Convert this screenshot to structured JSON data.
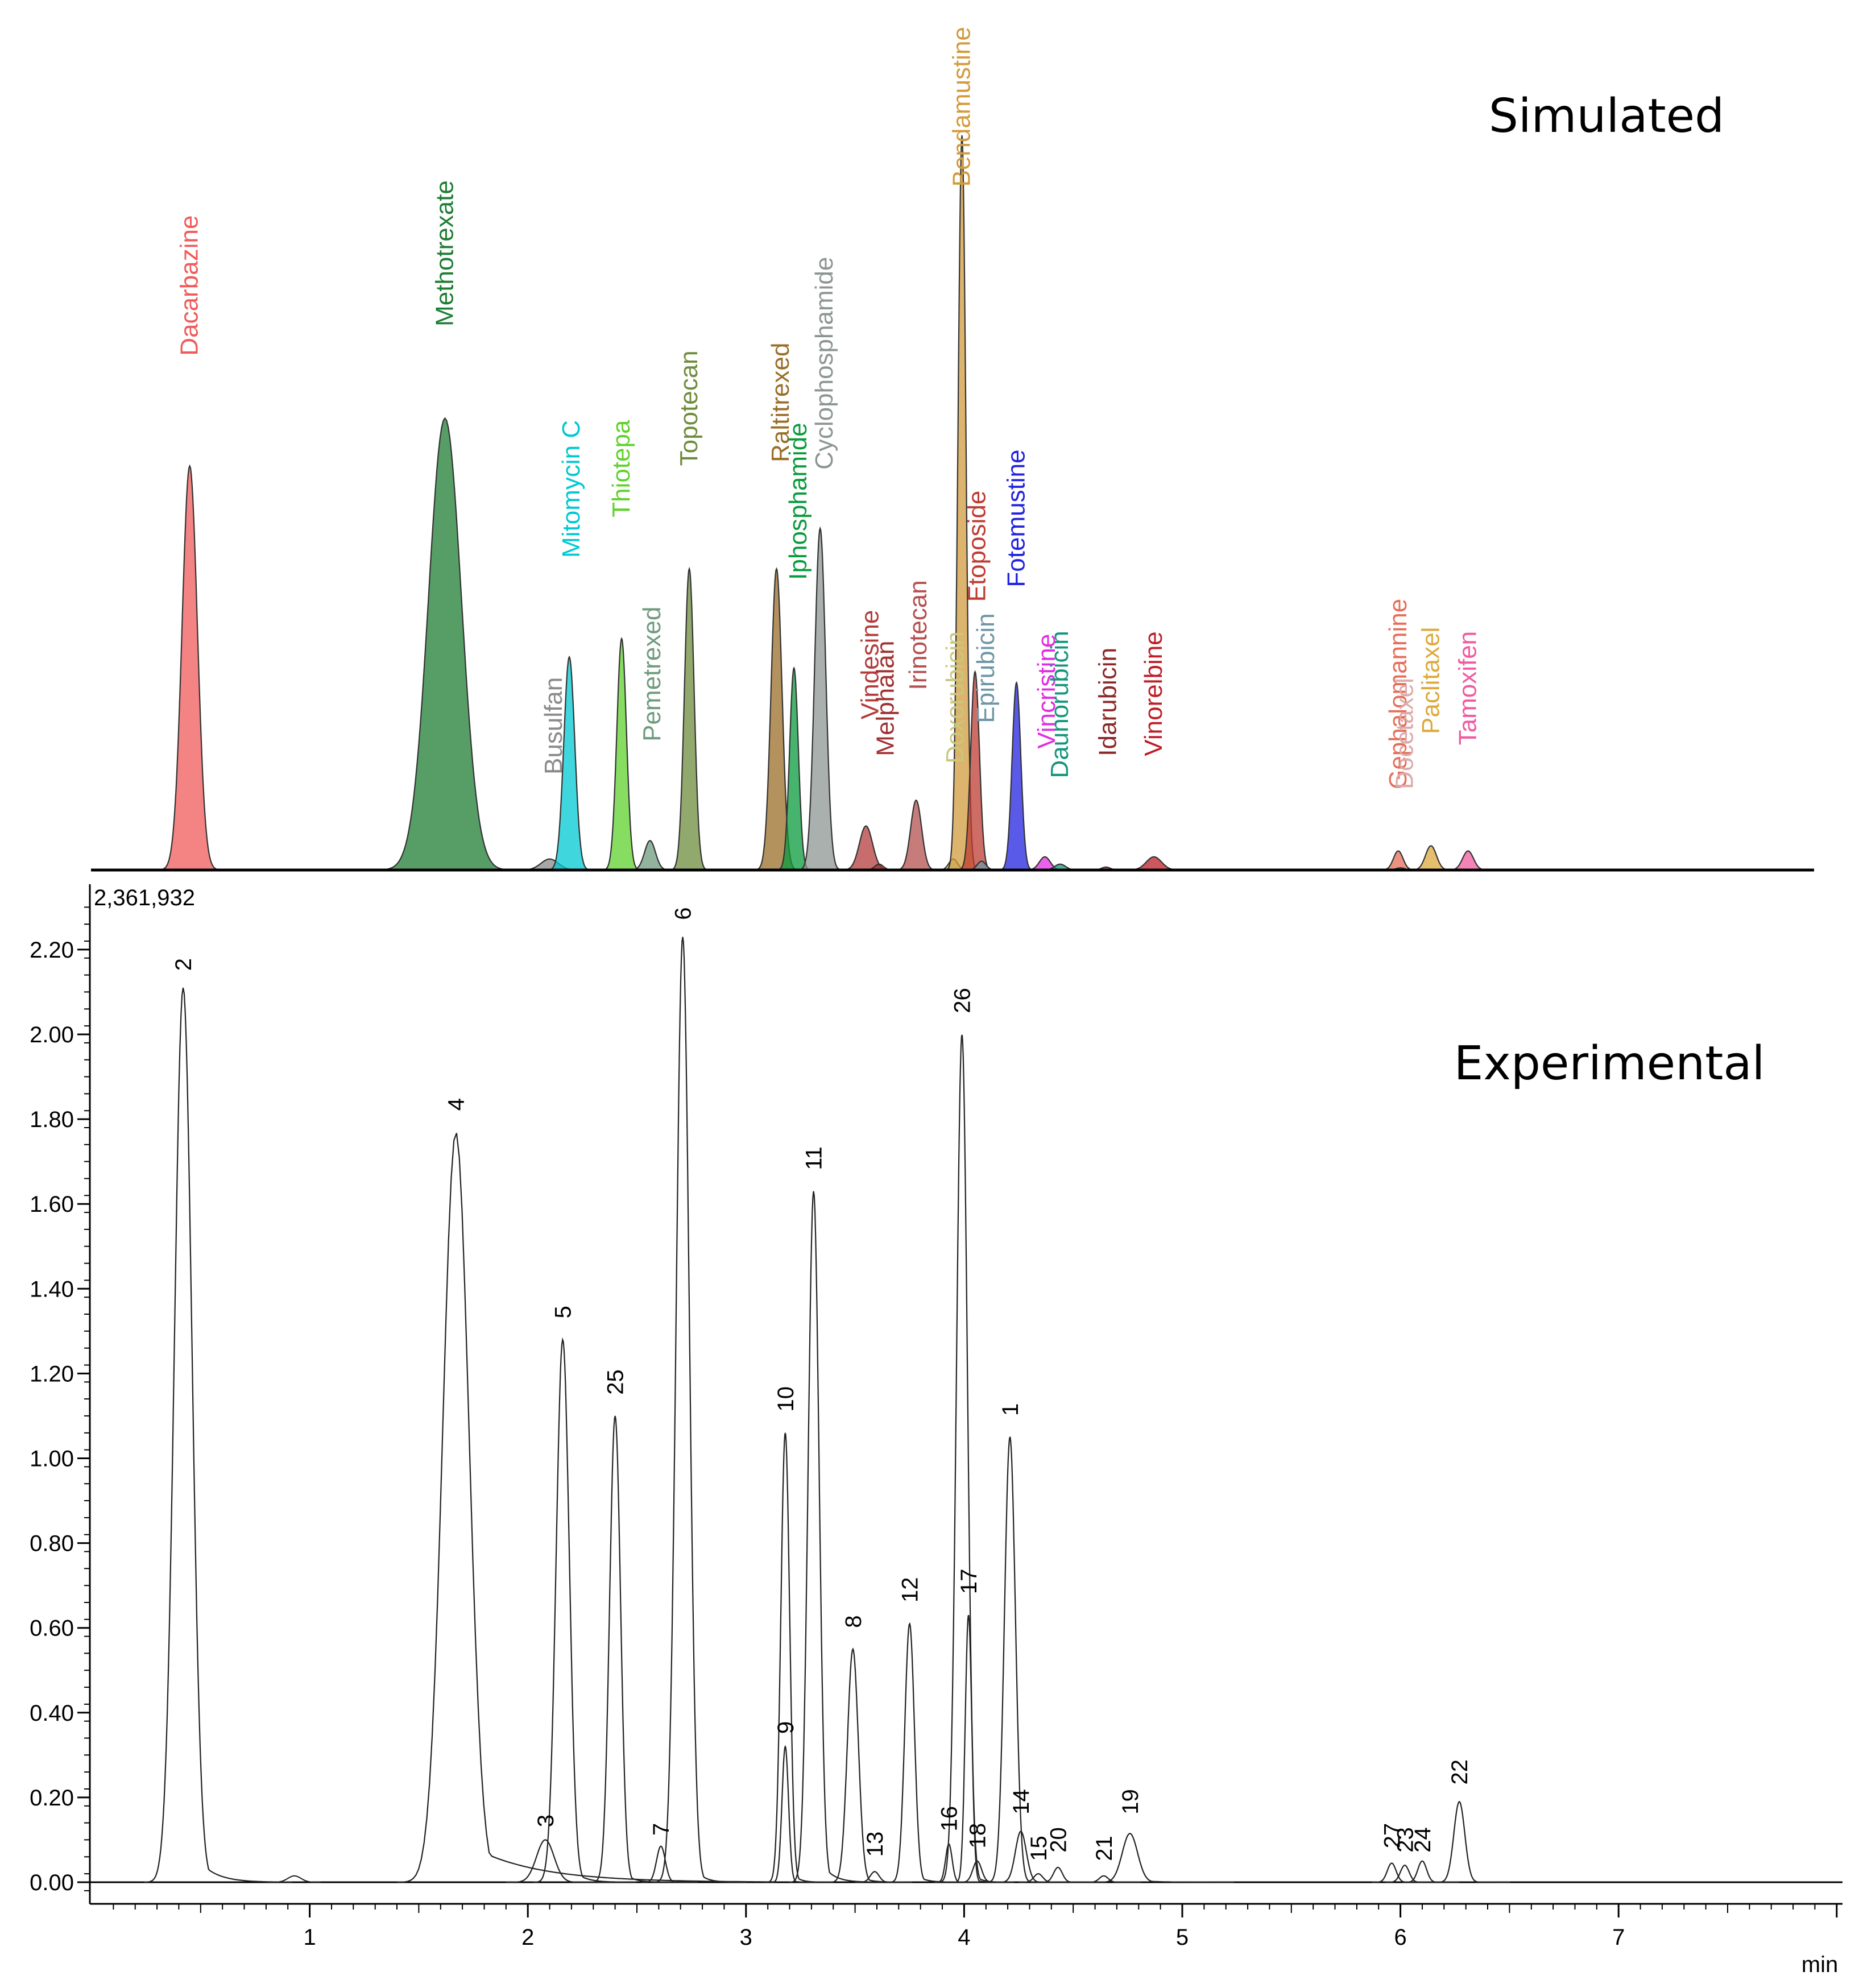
{
  "chart_data": [
    {
      "type": "area",
      "title": "Simulated",
      "xlabel": "",
      "ylabel": "",
      "xlim": [
        0,
        8
      ],
      "ylim": [
        0,
        1.0
      ],
      "peaks": [
        {
          "name": "Dacarbazine",
          "rt": 0.45,
          "height": 0.55,
          "sigma": 0.035,
          "color": "#f05a5a"
        },
        {
          "name": "Methotrexate",
          "rt": 1.62,
          "height": 0.615,
          "sigma": 0.075,
          "color": "#1e7d33"
        },
        {
          "name": "Busulfan",
          "rt": 2.1,
          "height": 0.015,
          "sigma": 0.04,
          "color": "#8a8a8a"
        },
        {
          "name": "Mitomycin C",
          "rt": 2.19,
          "height": 0.29,
          "sigma": 0.025,
          "color": "#00c8d2"
        },
        {
          "name": "Thiotepa",
          "rt": 2.43,
          "height": 0.315,
          "sigma": 0.022,
          "color": "#5fd22d"
        },
        {
          "name": "Pemetrexed",
          "rt": 2.56,
          "height": 0.04,
          "sigma": 0.025,
          "color": "#6e9b7d"
        },
        {
          "name": "Topotecan",
          "rt": 2.74,
          "height": 0.41,
          "sigma": 0.022,
          "color": "#6e8c3c"
        },
        {
          "name": "Raltitrexed",
          "rt": 3.14,
          "height": 0.41,
          "sigma": 0.025,
          "color": "#9b6e28"
        },
        {
          "name": "Iphosphamide",
          "rt": 3.22,
          "height": 0.275,
          "sigma": 0.02,
          "color": "#0a9b3c"
        },
        {
          "name": "Cyclophosphamide",
          "rt": 3.34,
          "height": 0.465,
          "sigma": 0.025,
          "color": "#8c9691"
        },
        {
          "name": "Vindesine",
          "rt": 3.55,
          "height": 0.06,
          "sigma": 0.03,
          "color": "#b43c3c"
        },
        {
          "name": "Melphalan",
          "rt": 3.61,
          "height": 0.008,
          "sigma": 0.02,
          "color": "#a03232"
        },
        {
          "name": "Irinotecan",
          "rt": 3.78,
          "height": 0.095,
          "sigma": 0.025,
          "color": "#b45050"
        },
        {
          "name": "Doxorubicin",
          "rt": 3.95,
          "height": 0.015,
          "sigma": 0.02,
          "color": "#c8c87d"
        },
        {
          "name": "Bendamustine",
          "rt": 3.99,
          "height": 1.0,
          "sigma": 0.018,
          "color": "#d29b3c"
        },
        {
          "name": "Etoposide",
          "rt": 4.05,
          "height": 0.27,
          "sigma": 0.02,
          "color": "#be3c32"
        },
        {
          "name": "Epirubicin",
          "rt": 4.08,
          "height": 0.012,
          "sigma": 0.02,
          "color": "#6e96a5"
        },
        {
          "name": "Fotemustine",
          "rt": 4.24,
          "height": 0.255,
          "sigma": 0.02,
          "color": "#2323e1"
        },
        {
          "name": "Vincristine",
          "rt": 4.37,
          "height": 0.018,
          "sigma": 0.025,
          "color": "#e12de1"
        },
        {
          "name": "Daunorubicin",
          "rt": 4.44,
          "height": 0.008,
          "sigma": 0.025,
          "color": "#14967d"
        },
        {
          "name": "Idarubicin",
          "rt": 4.65,
          "height": 0.004,
          "sigma": 0.02,
          "color": "#8c2828"
        },
        {
          "name": "Vinorelbine",
          "rt": 4.87,
          "height": 0.018,
          "sigma": 0.035,
          "color": "#be1e28"
        },
        {
          "name": "Gephalomannine",
          "rt": 5.99,
          "height": 0.026,
          "sigma": 0.022,
          "color": "#e66e5a"
        },
        {
          "name": "Docetaxel",
          "rt": 6.0,
          "height": 0.003,
          "sigma": 0.02,
          "color": "#dcaaaa"
        },
        {
          "name": "Paclitaxel",
          "rt": 6.14,
          "height": 0.033,
          "sigma": 0.025,
          "color": "#dcaa3c"
        },
        {
          "name": "Tamoxifen",
          "rt": 6.31,
          "height": 0.026,
          "sigma": 0.025,
          "color": "#f05aa0"
        }
      ],
      "labels": [
        {
          "text": "Dacarbazine",
          "x": 0.45,
          "baseline_height": 0.7,
          "color": "#f05a5a"
        },
        {
          "text": "Methotrexate",
          "x": 1.62,
          "baseline_height": 0.74,
          "color": "#1e7d33"
        },
        {
          "text": "Busulfan",
          "x": 2.12,
          "baseline_height": 0.13,
          "color": "#8a8a8a"
        },
        {
          "text": "Mitomycin C",
          "x": 2.2,
          "baseline_height": 0.425,
          "color": "#00c8d2"
        },
        {
          "text": "Thiotepa",
          "x": 2.43,
          "baseline_height": 0.48,
          "color": "#5fd22d"
        },
        {
          "text": "Pemetrexed",
          "x": 2.57,
          "baseline_height": 0.175,
          "color": "#6e9b7d"
        },
        {
          "text": "Topotecan",
          "x": 2.74,
          "baseline_height": 0.55,
          "color": "#6e8c3c"
        },
        {
          "text": "Raltitrexed",
          "x": 3.16,
          "baseline_height": 0.555,
          "color": "#9b6e28"
        },
        {
          "text": "Iphosphamide",
          "x": 3.24,
          "baseline_height": 0.395,
          "color": "#0a9b3c"
        },
        {
          "text": "Cyclophosphamide",
          "x": 3.36,
          "baseline_height": 0.545,
          "color": "#8c9691"
        },
        {
          "text": "Vindesine",
          "x": 3.57,
          "baseline_height": 0.205,
          "color": "#b43c3c"
        },
        {
          "text": "Melphalan",
          "x": 3.64,
          "baseline_height": 0.155,
          "color": "#a03232"
        },
        {
          "text": "Irinotecan",
          "x": 3.79,
          "baseline_height": 0.245,
          "color": "#b45050"
        },
        {
          "text": "Doxorubicin",
          "x": 3.96,
          "baseline_height": 0.145,
          "color": "#c8c87d"
        },
        {
          "text": "Bendamustine",
          "x": 3.99,
          "baseline_height": 0.93,
          "color": "#d29b3c"
        },
        {
          "text": "Etoposide",
          "x": 4.06,
          "baseline_height": 0.365,
          "color": "#be3c32"
        },
        {
          "text": "Epirubicin",
          "x": 4.1,
          "baseline_height": 0.2,
          "color": "#6e96a5"
        },
        {
          "text": "Fotemustine",
          "x": 4.24,
          "baseline_height": 0.385,
          "color": "#2323e1"
        },
        {
          "text": "Vincristine",
          "x": 4.38,
          "baseline_height": 0.165,
          "color": "#e12de1"
        },
        {
          "text": "Daunorubicin",
          "x": 4.44,
          "baseline_height": 0.125,
          "color": "#14967d"
        },
        {
          "text": "Idarubicin",
          "x": 4.66,
          "baseline_height": 0.155,
          "color": "#8c2828"
        },
        {
          "text": "Vinorelbine",
          "x": 4.87,
          "baseline_height": 0.155,
          "color": "#be1e28"
        },
        {
          "text": "Gephalomannine",
          "x": 5.99,
          "baseline_height": 0.11,
          "color": "#e66e5a"
        },
        {
          "text": "Docetaxel",
          "x": 6.02,
          "baseline_height": 0.11,
          "color": "#dcaaaa"
        },
        {
          "text": "Paclitaxel",
          "x": 6.14,
          "baseline_height": 0.185,
          "color": "#dcaa3c"
        },
        {
          "text": "Tamoxifen",
          "x": 6.31,
          "baseline_height": 0.17,
          "color": "#f05aa0"
        }
      ]
    },
    {
      "type": "line",
      "title": "Experimental",
      "xlabel": "min",
      "ylabel": "",
      "xlim": [
        0,
        8
      ],
      "ylim": [
        -0.05,
        2.3
      ],
      "y_max_annotation": "2,361,932",
      "xticks": [
        1,
        2,
        3,
        4,
        5,
        6,
        7
      ],
      "xtick_labels": [
        "1",
        "2",
        "3",
        "4",
        "5",
        "6",
        "7"
      ],
      "yticks": [
        0,
        0.2,
        0.4,
        0.6,
        0.8,
        1.0,
        1.2,
        1.4,
        1.6,
        1.8,
        2.0,
        2.2
      ],
      "ytick_labels": [
        "0.00",
        "0.20",
        "0.40",
        "0.60",
        "0.80",
        "1.00",
        "1.20",
        "1.40",
        "1.60",
        "1.80",
        "2.00",
        "2.20"
      ],
      "line_color": "#222222",
      "peaks": [
        {
          "label": "1",
          "rt": 4.21,
          "height": 1.05,
          "sigma": 0.025,
          "tail": 0.02,
          "label_height": 1.1
        },
        {
          "label": "2",
          "rt": 0.42,
          "height": 2.11,
          "sigma": 0.04,
          "tail": 0.08,
          "label_height": 2.15
        },
        {
          "label": "3",
          "rt": 2.08,
          "height": 0.1,
          "sigma": 0.04,
          "tail": 0.05,
          "label_height": 0.13
        },
        {
          "label": "4",
          "rt": 1.67,
          "height": 1.77,
          "sigma": 0.06,
          "tail": 0.3,
          "label_height": 1.82
        },
        {
          "label": "5",
          "rt": 2.16,
          "height": 1.28,
          "sigma": 0.03,
          "tail": 0.05,
          "label_height": 1.33
        },
        {
          "label": "6",
          "rt": 2.71,
          "height": 2.23,
          "sigma": 0.03,
          "tail": 0.04,
          "label_height": 2.27
        },
        {
          "label": "7",
          "rt": 2.61,
          "height": 0.085,
          "sigma": 0.02,
          "tail": 0.02,
          "label_height": 0.11
        },
        {
          "label": "8",
          "rt": 3.49,
          "height": 0.55,
          "sigma": 0.025,
          "tail": 0.04,
          "label_height": 0.6
        },
        {
          "label": "9",
          "rt": 3.18,
          "height": 0.32,
          "sigma": 0.015,
          "tail": 0.02,
          "label_height": 0.35
        },
        {
          "label": "10",
          "rt": 3.18,
          "height": 1.06,
          "sigma": 0.02,
          "tail": 0.03,
          "label_height": 1.11
        },
        {
          "label": "11",
          "rt": 3.31,
          "height": 1.63,
          "sigma": 0.025,
          "tail": 0.05,
          "label_height": 1.68
        },
        {
          "label": "12",
          "rt": 3.75,
          "height": 0.61,
          "sigma": 0.022,
          "tail": 0.04,
          "label_height": 0.66
        },
        {
          "label": "13",
          "rt": 3.59,
          "height": 0.025,
          "sigma": 0.02,
          "tail": 0.02,
          "label_height": 0.06
        },
        {
          "label": "14",
          "rt": 4.26,
          "height": 0.12,
          "sigma": 0.025,
          "tail": 0.02,
          "label_height": 0.16
        },
        {
          "label": "15",
          "rt": 4.34,
          "height": 0.02,
          "sigma": 0.02,
          "tail": 0.02,
          "label_height": 0.05
        },
        {
          "label": "16",
          "rt": 3.93,
          "height": 0.09,
          "sigma": 0.015,
          "tail": 0.02,
          "label_height": 0.12
        },
        {
          "label": "17",
          "rt": 4.02,
          "height": 0.63,
          "sigma": 0.015,
          "tail": 0.02,
          "label_height": 0.68
        },
        {
          "label": "18",
          "rt": 4.06,
          "height": 0.05,
          "sigma": 0.02,
          "tail": 0.02,
          "label_height": 0.08
        },
        {
          "label": "19",
          "rt": 4.76,
          "height": 0.115,
          "sigma": 0.035,
          "tail": 0.08,
          "label_height": 0.16
        },
        {
          "label": "20",
          "rt": 4.43,
          "height": 0.035,
          "sigma": 0.02,
          "tail": 0.02,
          "label_height": 0.07
        },
        {
          "label": "21",
          "rt": 4.64,
          "height": 0.015,
          "sigma": 0.02,
          "tail": 0.02,
          "label_height": 0.05
        },
        {
          "label": "22",
          "rt": 6.27,
          "height": 0.19,
          "sigma": 0.025,
          "tail": 0.03,
          "label_height": 0.23
        },
        {
          "label": "23",
          "rt": 6.02,
          "height": 0.04,
          "sigma": 0.02,
          "tail": 0.02,
          "label_height": 0.07
        },
        {
          "label": "24",
          "rt": 6.1,
          "height": 0.05,
          "sigma": 0.02,
          "tail": 0.02,
          "label_height": 0.07
        },
        {
          "label": "25",
          "rt": 2.4,
          "height": 1.1,
          "sigma": 0.025,
          "tail": 0.04,
          "label_height": 1.15
        },
        {
          "label": "26",
          "rt": 3.99,
          "height": 2.0,
          "sigma": 0.025,
          "tail": 0.03,
          "label_height": 2.05
        },
        {
          "label": "27",
          "rt": 5.96,
          "height": 0.045,
          "sigma": 0.02,
          "tail": 0.02,
          "label_height": 0.08
        }
      ],
      "minor_bumps": [
        {
          "rt": 0.93,
          "height": 0.015,
          "sigma": 0.03
        }
      ]
    }
  ]
}
